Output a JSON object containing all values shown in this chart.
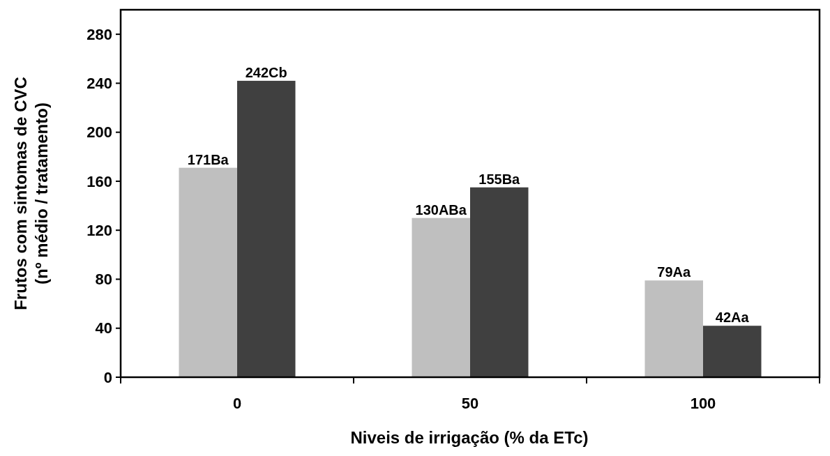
{
  "chart_data": {
    "type": "bar",
    "xlabel": "Niveis de irrigação (% da ETc)",
    "ylabel": "Frutos com sintomas de CVC\n(nº médio / tratamento)",
    "categories": [
      "0",
      "50",
      "100"
    ],
    "series": [
      {
        "color": "#bfbfbf",
        "values": [
          171,
          130,
          79
        ],
        "value_labels": [
          "171Ba",
          "130ABa",
          "79Aa"
        ]
      },
      {
        "color": "#404040",
        "values": [
          242,
          155,
          42
        ],
        "value_labels": [
          "242Cb",
          "155Ba",
          "42Aa"
        ]
      }
    ],
    "ylim": [
      0,
      300
    ],
    "yticks": [
      0,
      40,
      80,
      120,
      160,
      200,
      240,
      280
    ],
    "grid": false
  }
}
